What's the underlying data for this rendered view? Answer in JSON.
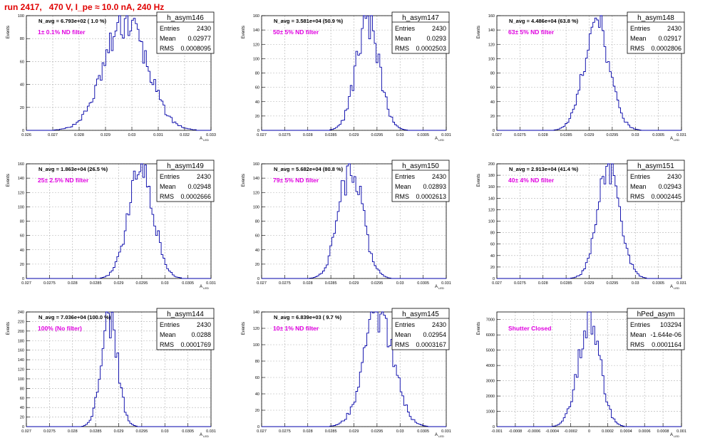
{
  "canvas": {
    "title": "run 2417,   470 V, I_pe ≈ 10.0 nA, 240 Hz"
  },
  "colors": {
    "histogram": "#0000a8",
    "filter_label": "#e000e0",
    "title": "#e00000",
    "grid": "#b0b0b0"
  },
  "labels": {
    "ylabel": "Events",
    "xlabel": "A_LED"
  },
  "chart_data": [
    {
      "type": "histogram",
      "name": "h_asym146",
      "entries": "2430",
      "mean": "0.02977",
      "rms": "0.0008095",
      "navg": "N_avg = 6.793e+02 ( 1.0 %)",
      "filter": "1± 0.1% ND filter",
      "xlim": [
        0.026,
        0.033
      ],
      "xticks": [
        "0.026",
        "0.027",
        "0.028",
        "0.029",
        "0.03",
        "0.031",
        "0.032",
        "0.033"
      ],
      "ylim": [
        0,
        100
      ],
      "yticks": [
        "0",
        "20",
        "40",
        "60",
        "80",
        "100"
      ],
      "mean_value": 0.02977,
      "rms_value": 0.0008095,
      "peak": 95
    },
    {
      "type": "histogram",
      "name": "h_asym147",
      "entries": "2430",
      "mean": "0.0293",
      "rms": "0.0002503",
      "navg": "N_avg = 3.581e+04 (50.9 %)",
      "filter": "50± 5% ND filter",
      "xlim": [
        0.027,
        0.031
      ],
      "xticks": [
        "0.027",
        "0.0275",
        "0.028",
        "0.0285",
        "0.029",
        "0.0295",
        "0.03",
        "0.0305",
        "0.031"
      ],
      "ylim": [
        0,
        160
      ],
      "yticks": [
        "0",
        "20",
        "40",
        "60",
        "80",
        "100",
        "120",
        "140",
        "160"
      ],
      "mean_value": 0.0293,
      "rms_value": 0.0002503,
      "peak": 150
    },
    {
      "type": "histogram",
      "name": "h_asym148",
      "entries": "2430",
      "mean": "0.02917",
      "rms": "0.0002806",
      "navg": "N_avg = 4.486e+04 (63.8 %)",
      "filter": "63± 5% ND filter",
      "xlim": [
        0.027,
        0.031
      ],
      "xticks": [
        "0.027",
        "0.0275",
        "0.028",
        "0.0285",
        "0.029",
        "0.0295",
        "0.03",
        "0.0305",
        "0.031"
      ],
      "ylim": [
        0,
        160
      ],
      "yticks": [
        "0",
        "20",
        "40",
        "60",
        "80",
        "100",
        "120",
        "140",
        "160"
      ],
      "mean_value": 0.02917,
      "rms_value": 0.0002806,
      "peak": 145
    },
    {
      "type": "histogram",
      "name": "h_asym149",
      "entries": "2430",
      "mean": "0.02948",
      "rms": "0.0002666",
      "navg": "N_avg = 1.863e+04 (26.5 %)",
      "filter": "25± 2.5% ND filter",
      "xlim": [
        0.027,
        0.031
      ],
      "xticks": [
        "0.027",
        "0.0275",
        "0.028",
        "0.0285",
        "0.029",
        "0.0295",
        "0.03",
        "0.0305",
        "0.031"
      ],
      "ylim": [
        0,
        160
      ],
      "yticks": [
        "0",
        "20",
        "40",
        "60",
        "80",
        "100",
        "120",
        "140",
        "160"
      ],
      "mean_value": 0.02948,
      "rms_value": 0.0002666,
      "peak": 160
    },
    {
      "type": "histogram",
      "name": "h_asym150",
      "entries": "2430",
      "mean": "0.02893",
      "rms": "0.0002613",
      "navg": "N_avg = 5.682e+04 (80.8 %)",
      "filter": "79± 5% ND filter",
      "xlim": [
        0.027,
        0.031
      ],
      "xticks": [
        "0.027",
        "0.0275",
        "0.028",
        "0.0285",
        "0.029",
        "0.0295",
        "0.03",
        "0.0305",
        "0.031"
      ],
      "ylim": [
        0,
        160
      ],
      "yticks": [
        "0",
        "20",
        "40",
        "60",
        "80",
        "100",
        "120",
        "140",
        "160"
      ],
      "mean_value": 0.02893,
      "rms_value": 0.0002613,
      "peak": 155
    },
    {
      "type": "histogram",
      "name": "h_asym151",
      "entries": "2430",
      "mean": "0.02943",
      "rms": "0.0002445",
      "navg": "N_avg = 2.913e+04 (41.4 %)",
      "filter": "40± 4% ND filter",
      "xlim": [
        0.027,
        0.031
      ],
      "xticks": [
        "0.027",
        "0.0275",
        "0.028",
        "0.0285",
        "0.029",
        "0.0295",
        "0.03",
        "0.0305",
        "0.031"
      ],
      "ylim": [
        0,
        200
      ],
      "yticks": [
        "0",
        "20",
        "40",
        "60",
        "80",
        "100",
        "120",
        "140",
        "160",
        "180",
        "200"
      ],
      "mean_value": 0.02943,
      "rms_value": 0.0002445,
      "peak": 190
    },
    {
      "type": "histogram",
      "name": "h_asym144",
      "entries": "2430",
      "mean": "0.0288",
      "rms": "0.0001769",
      "navg": "N_avg = 7.036e+04 (100.0 %)",
      "filter": "100% (No filter)",
      "xlim": [
        0.027,
        0.031
      ],
      "xticks": [
        "0.027",
        "0.0275",
        "0.028",
        "0.0285",
        "0.029",
        "0.0295",
        "0.03",
        "0.0305",
        "0.031"
      ],
      "ylim": [
        0,
        240
      ],
      "yticks": [
        "0",
        "20",
        "40",
        "60",
        "80",
        "100",
        "120",
        "140",
        "160",
        "180",
        "200",
        "220",
        "240"
      ],
      "mean_value": 0.0288,
      "rms_value": 0.0001769,
      "peak": 225
    },
    {
      "type": "histogram",
      "name": "h_asym145",
      "entries": "2430",
      "mean": "0.02954",
      "rms": "0.0003167",
      "navg": "N_avg = 6.839e+03 ( 9.7 %)",
      "filter": "10± 1% ND filter",
      "xlim": [
        0.027,
        0.031
      ],
      "xticks": [
        "0.027",
        "0.0275",
        "0.028",
        "0.0285",
        "0.029",
        "0.0295",
        "0.03",
        "0.0305",
        "0.031"
      ],
      "ylim": [
        0,
        140
      ],
      "yticks": [
        "0",
        "20",
        "40",
        "60",
        "80",
        "100",
        "120",
        "140"
      ],
      "mean_value": 0.02954,
      "rms_value": 0.0003167,
      "peak": 140
    },
    {
      "type": "histogram",
      "name": "hPed_asym",
      "entries": "103294",
      "mean": "-1.644e-06",
      "rms": "0.0001164",
      "navg": "",
      "filter": "Shutter Closed",
      "xlim": [
        -0.001,
        0.001
      ],
      "xticks": [
        "-0.001",
        "-0.0008",
        "-0.0006",
        "-0.0004",
        "-0.0002",
        "0",
        "0.0002",
        "0.0004",
        "0.0006",
        "0.0008",
        "0.001"
      ],
      "ylim": [
        0,
        7500
      ],
      "yticks": [
        "0",
        "1000",
        "2000",
        "3000",
        "4000",
        "5000",
        "6000",
        "7000"
      ],
      "mean_value": -1.644e-06,
      "rms_value": 0.0001164,
      "peak": 7150
    }
  ]
}
